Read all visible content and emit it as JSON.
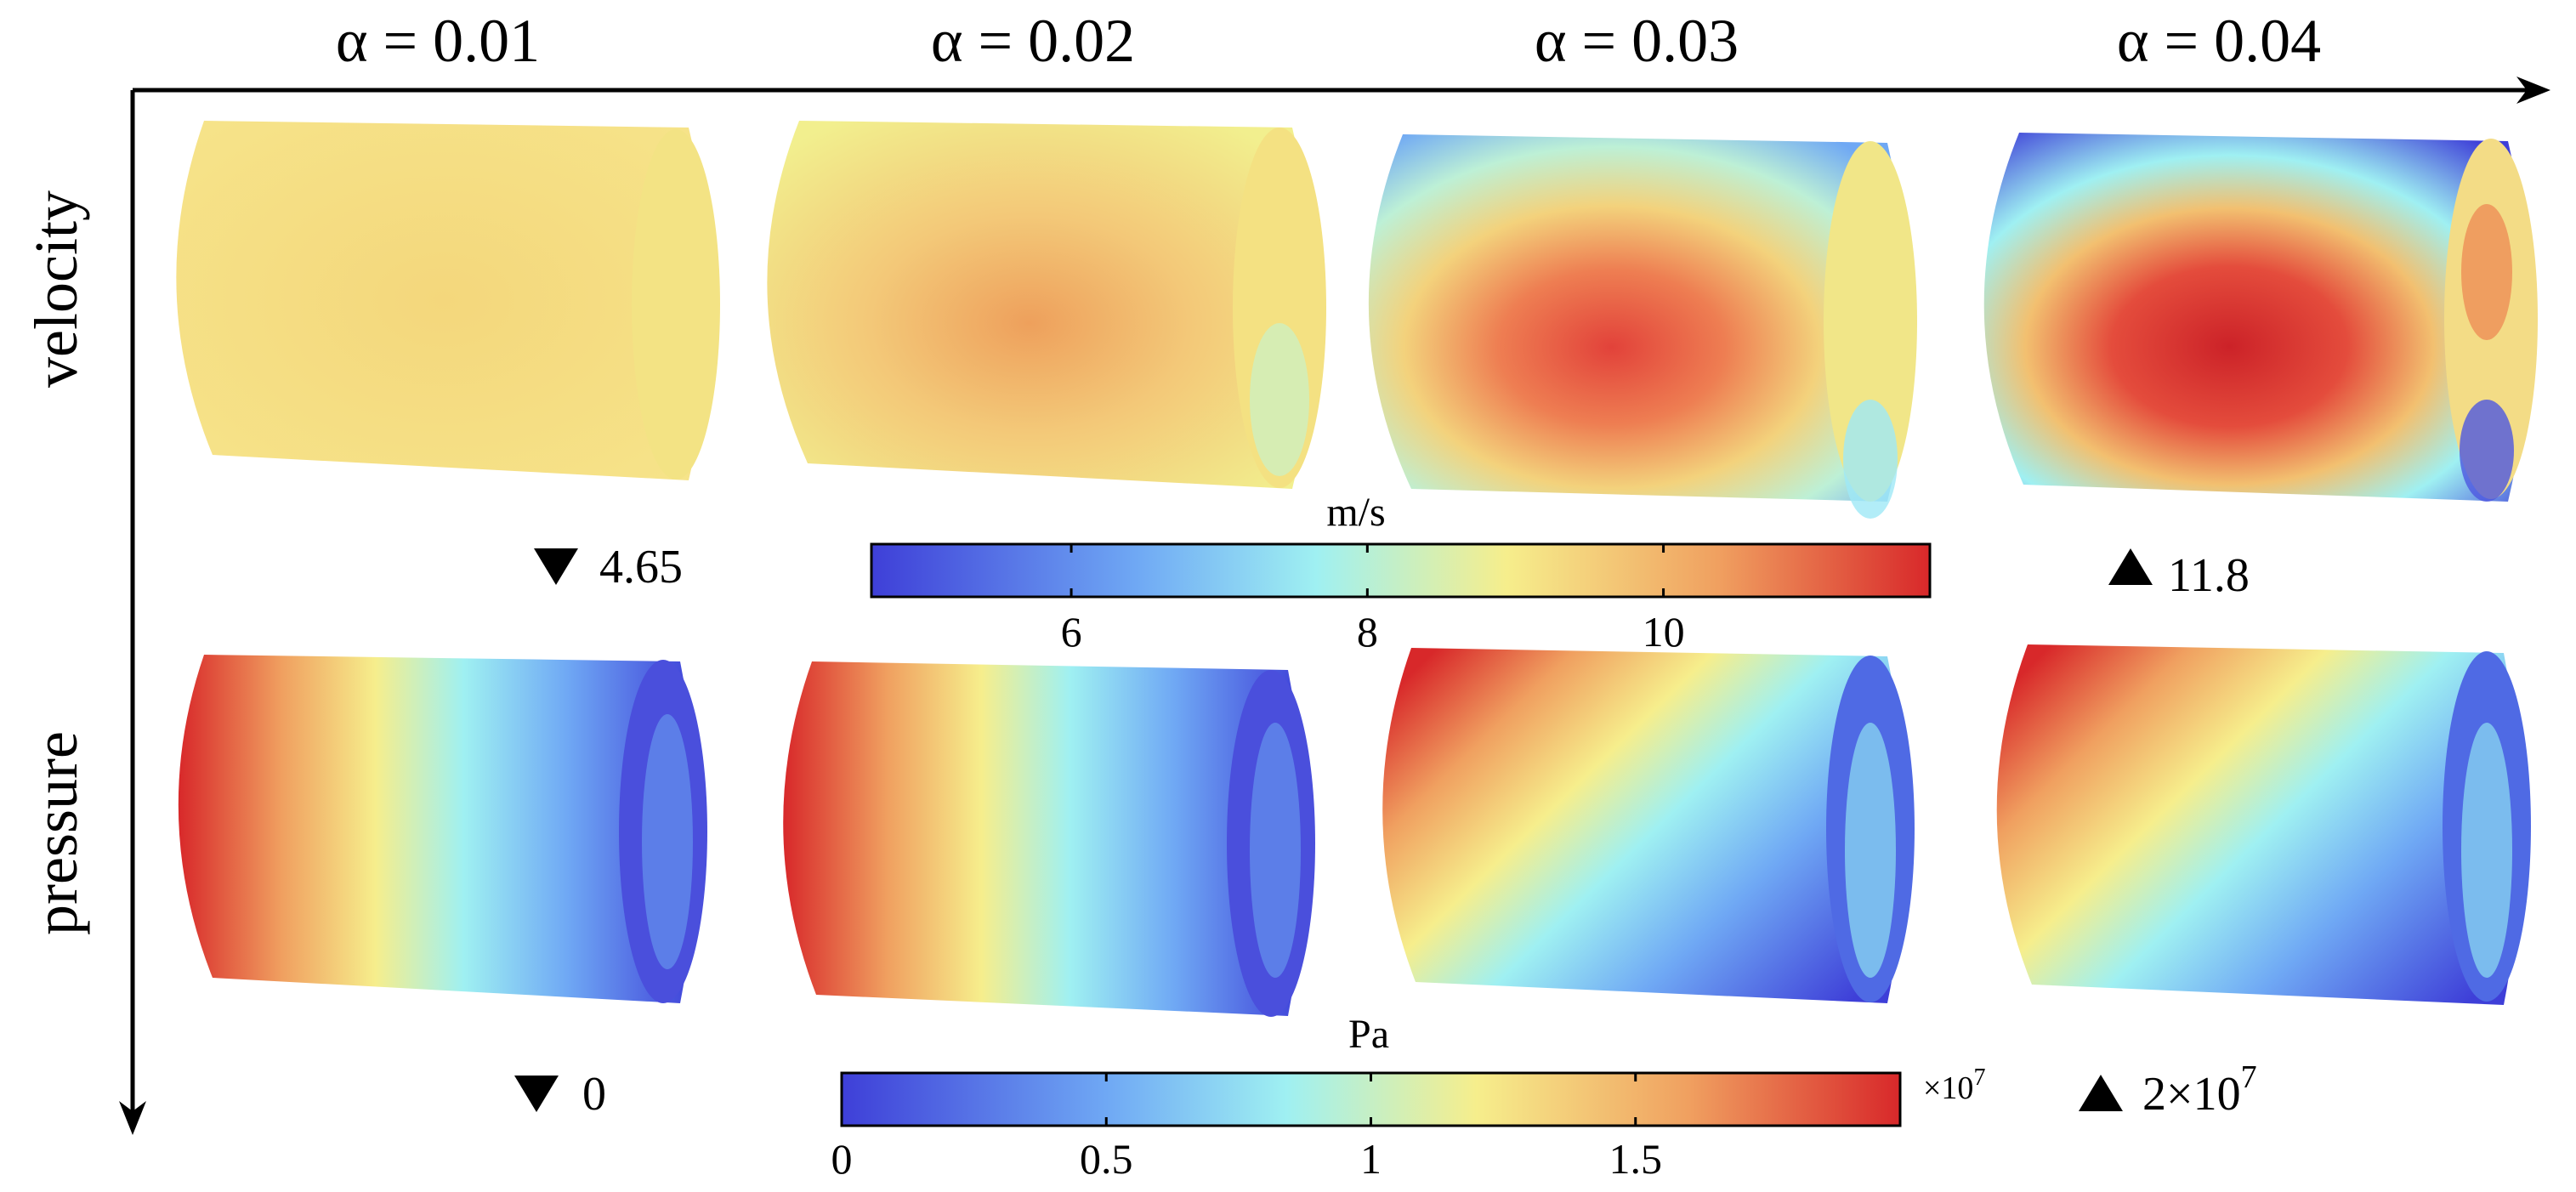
{
  "columns": [
    {
      "label": "α = 0.01"
    },
    {
      "label": "α = 0.02"
    },
    {
      "label": "α = 0.03"
    },
    {
      "label": "α = 0.04"
    }
  ],
  "rows": [
    {
      "label": "velocity"
    },
    {
      "label": "pressure"
    }
  ],
  "velocity_colorbar": {
    "unit": "m/s",
    "ticks": [
      "6",
      "8",
      "10"
    ],
    "tick_values": [
      6,
      8,
      10
    ],
    "min_value": 4.65,
    "max_value": 11.8,
    "min_label": "4.65",
    "max_label": "11.8",
    "exponent_label": ""
  },
  "pressure_colorbar": {
    "unit": "Pa",
    "ticks": [
      "0",
      "0.5",
      "1",
      "1.5"
    ],
    "tick_values": [
      0,
      0.5,
      1,
      1.5
    ],
    "min_value": 0,
    "max_value": 2,
    "min_label": "0",
    "max_label": "2×10",
    "max_label_exp": "7",
    "multiplier": "×10",
    "multiplier_exp": "7"
  },
  "colors": {
    "jet_low": "#3e3fd8",
    "jet_mid_low": "#8fe0f2",
    "jet_mid": "#f6ee8c",
    "jet_mid_high": "#f0a860",
    "jet_high": "#d8282a"
  }
}
